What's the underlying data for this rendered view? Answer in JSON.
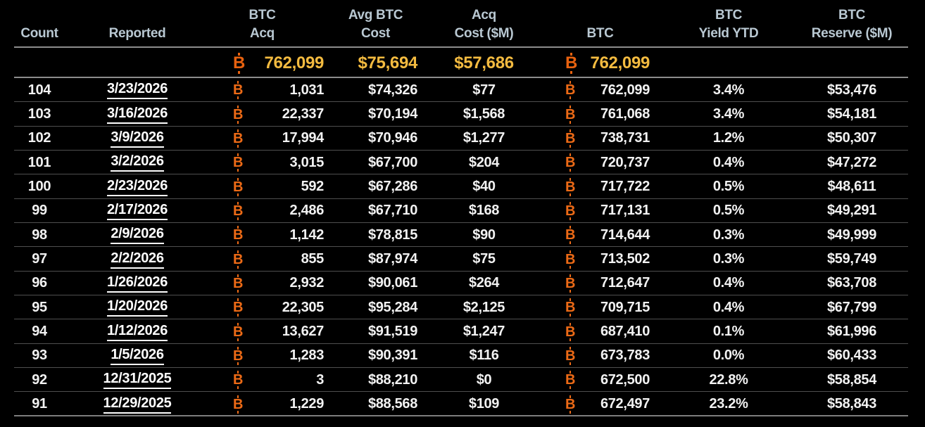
{
  "chart_data": {
    "type": "table",
    "columns": [
      {
        "id": "count",
        "line1": "",
        "line2": "Count"
      },
      {
        "id": "reported",
        "line1": "",
        "line2": "Reported"
      },
      {
        "id": "btc_acq",
        "line1": "BTC",
        "line2": "Acq"
      },
      {
        "id": "avg_btc_cost",
        "line1": "Avg BTC",
        "line2": "Cost"
      },
      {
        "id": "acq_cost_m",
        "line1": "Acq",
        "line2": "Cost ($M)"
      },
      {
        "id": "btc",
        "line1": "",
        "line2": "BTC"
      },
      {
        "id": "yield_ytd",
        "line1": "BTC",
        "line2": "Yield YTD"
      },
      {
        "id": "reserve_m",
        "line1": "BTC",
        "line2": "Reserve ($M)"
      }
    ],
    "totals_row": {
      "btc_acq": "762,099",
      "avg_btc_cost": "$75,694",
      "acq_cost_m": "$57,686",
      "btc": "762,099"
    },
    "rows": [
      {
        "count": "104",
        "reported": "3/23/2026",
        "btc_acq": "1,031",
        "avg_btc_cost": "$74,326",
        "acq_cost_m": "$77",
        "btc": "762,099",
        "yield_ytd": "3.4%",
        "reserve_m": "$53,476"
      },
      {
        "count": "103",
        "reported": "3/16/2026",
        "btc_acq": "22,337",
        "avg_btc_cost": "$70,194",
        "acq_cost_m": "$1,568",
        "btc": "761,068",
        "yield_ytd": "3.4%",
        "reserve_m": "$54,181"
      },
      {
        "count": "102",
        "reported": "3/9/2026",
        "btc_acq": "17,994",
        "avg_btc_cost": "$70,946",
        "acq_cost_m": "$1,277",
        "btc": "738,731",
        "yield_ytd": "1.2%",
        "reserve_m": "$50,307"
      },
      {
        "count": "101",
        "reported": "3/2/2026",
        "btc_acq": "3,015",
        "avg_btc_cost": "$67,700",
        "acq_cost_m": "$204",
        "btc": "720,737",
        "yield_ytd": "0.4%",
        "reserve_m": "$47,272"
      },
      {
        "count": "100",
        "reported": "2/23/2026",
        "btc_acq": "592",
        "avg_btc_cost": "$67,286",
        "acq_cost_m": "$40",
        "btc": "717,722",
        "yield_ytd": "0.5%",
        "reserve_m": "$48,611"
      },
      {
        "count": "99",
        "reported": "2/17/2026",
        "btc_acq": "2,486",
        "avg_btc_cost": "$67,710",
        "acq_cost_m": "$168",
        "btc": "717,131",
        "yield_ytd": "0.5%",
        "reserve_m": "$49,291"
      },
      {
        "count": "98",
        "reported": "2/9/2026",
        "btc_acq": "1,142",
        "avg_btc_cost": "$78,815",
        "acq_cost_m": "$90",
        "btc": "714,644",
        "yield_ytd": "0.3%",
        "reserve_m": "$49,999"
      },
      {
        "count": "97",
        "reported": "2/2/2026",
        "btc_acq": "855",
        "avg_btc_cost": "$87,974",
        "acq_cost_m": "$75",
        "btc": "713,502",
        "yield_ytd": "0.3%",
        "reserve_m": "$59,749"
      },
      {
        "count": "96",
        "reported": "1/26/2026",
        "btc_acq": "2,932",
        "avg_btc_cost": "$90,061",
        "acq_cost_m": "$264",
        "btc": "712,647",
        "yield_ytd": "0.4%",
        "reserve_m": "$63,708"
      },
      {
        "count": "95",
        "reported": "1/20/2026",
        "btc_acq": "22,305",
        "avg_btc_cost": "$95,284",
        "acq_cost_m": "$2,125",
        "btc": "709,715",
        "yield_ytd": "0.4%",
        "reserve_m": "$67,799"
      },
      {
        "count": "94",
        "reported": "1/12/2026",
        "btc_acq": "13,627",
        "avg_btc_cost": "$91,519",
        "acq_cost_m": "$1,247",
        "btc": "687,410",
        "yield_ytd": "0.1%",
        "reserve_m": "$61,996"
      },
      {
        "count": "93",
        "reported": "1/5/2026",
        "btc_acq": "1,283",
        "avg_btc_cost": "$90,391",
        "acq_cost_m": "$116",
        "btc": "673,783",
        "yield_ytd": "0.0%",
        "reserve_m": "$60,433"
      },
      {
        "count": "92",
        "reported": "12/31/2025",
        "btc_acq": "3",
        "avg_btc_cost": "$88,210",
        "acq_cost_m": "$0",
        "btc": "672,500",
        "yield_ytd": "22.8%",
        "reserve_m": "$58,854"
      },
      {
        "count": "91",
        "reported": "12/29/2025",
        "btc_acq": "1,229",
        "avg_btc_cost": "$88,568",
        "acq_cost_m": "$109",
        "btc": "672,497",
        "yield_ytd": "23.2%",
        "reserve_m": "$58,843"
      }
    ]
  },
  "icons": {
    "btc_letter": "B"
  },
  "colors": {
    "background": "#000000",
    "header_text": "#b9c8d2",
    "totals_amber": "#f4bb40",
    "btc_orange": "#ec6a16",
    "row_text": "#f2f2f2",
    "divider_strong": "#8c8c8c",
    "divider_row": "#4f4f4f"
  }
}
